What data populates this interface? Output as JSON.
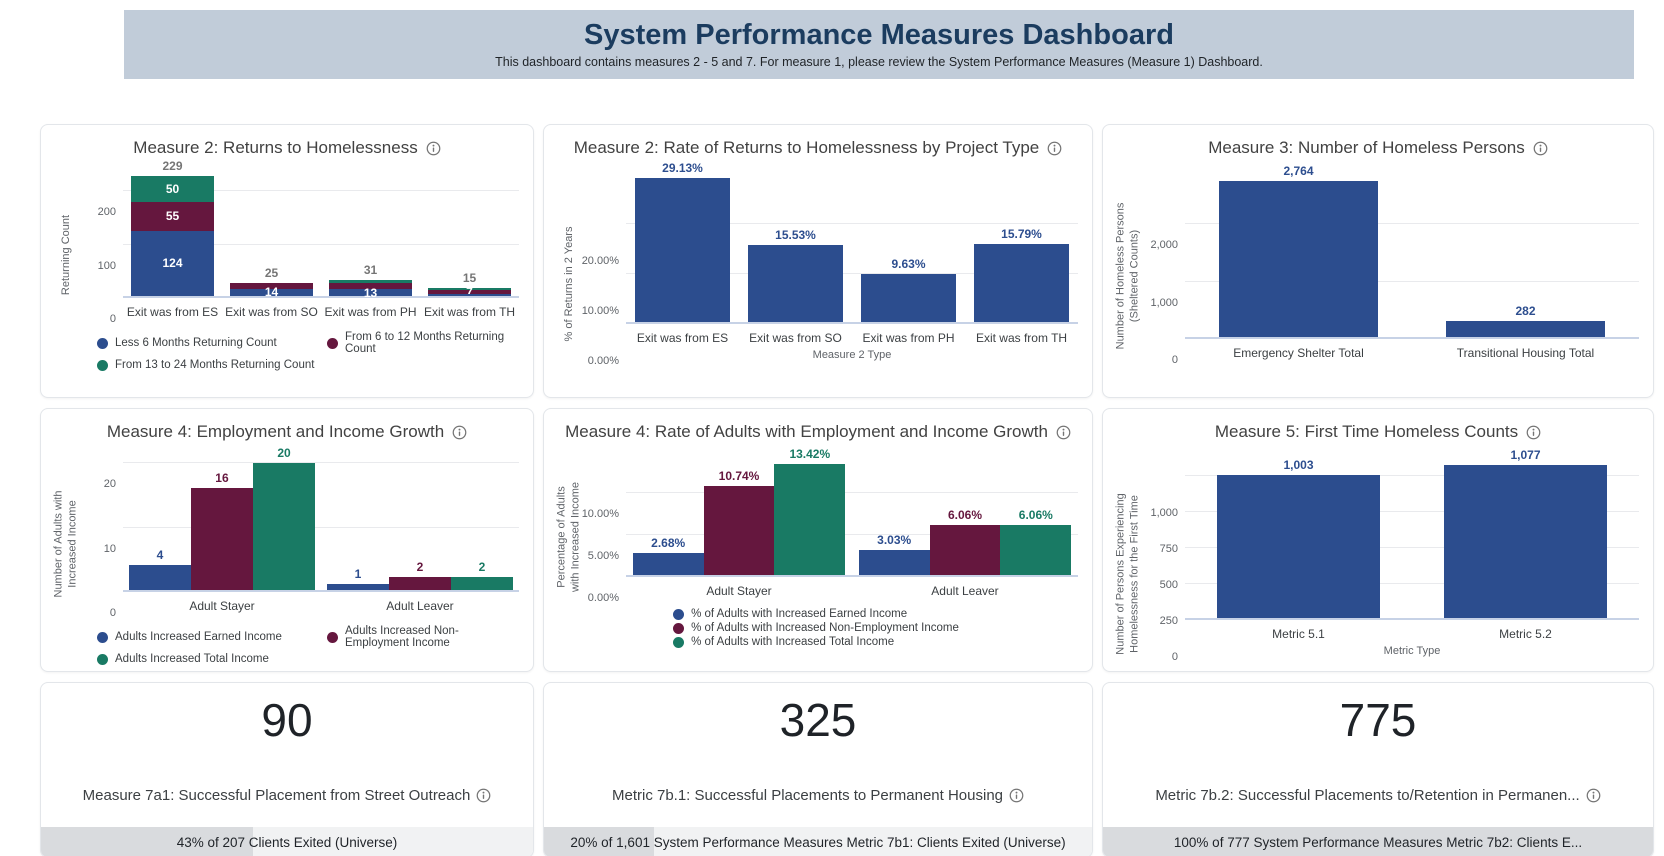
{
  "header": {
    "title": "System Performance Measures Dashboard",
    "subtitle": "This dashboard contains measures 2 - 5 and 7. For measure 1, please review the System Performance Measures (Measure 1) Dashboard."
  },
  "colors": {
    "blue": "#2C4D8E",
    "maroon": "#65173E",
    "teal": "#197A64",
    "value_label": "#2D4E8F",
    "total_label": "#757575",
    "header_bg": "#C1CCD9",
    "header_title": "#1B3C5F"
  },
  "chart_data": [
    {
      "id": "measure2-returns",
      "type": "bar-stacked",
      "title": "Measure 2: Returns to Homelessness",
      "ylabel": "Returning Count",
      "ylim": [
        0,
        240
      ],
      "yticks": [
        {
          "v": 0,
          "label": "0"
        },
        {
          "v": 100,
          "label": "100"
        },
        {
          "v": 200,
          "label": "200"
        }
      ],
      "categories": [
        "Exit was from ES",
        "Exit was from SO",
        "Exit was from PH",
        "Exit was from TH"
      ],
      "totals": [
        "229",
        "25",
        "31",
        "15"
      ],
      "series": [
        {
          "name": "Less 6 Months Returning Count",
          "color": "blue",
          "values": [
            124,
            14,
            13,
            4
          ],
          "bar_labels": [
            "124",
            "14",
            "13",
            ""
          ]
        },
        {
          "name": "From 6 to 12 Months Returning Count",
          "color": "maroon",
          "values": [
            55,
            11,
            12,
            7
          ],
          "bar_labels": [
            "55",
            "",
            "",
            "7"
          ]
        },
        {
          "name": "From 13 to 24 Months Returning Count",
          "color": "teal",
          "values": [
            50,
            0,
            6,
            4
          ],
          "bar_labels": [
            "50",
            "",
            "",
            ""
          ]
        }
      ],
      "legend": "left-2col"
    },
    {
      "id": "measure2-rate",
      "type": "bar",
      "title": "Measure 2: Rate of Returns to Homelessness by Project Type",
      "ylabel": "% of Returns in 2 Years",
      "xlabel": "Measure 2 Type",
      "ylim": [
        0,
        30.8
      ],
      "yticks": [
        {
          "v": 0,
          "label": "0.00%"
        },
        {
          "v": 10,
          "label": "10.00%"
        },
        {
          "v": 20,
          "label": "20.00%"
        }
      ],
      "categories": [
        "Exit was from ES",
        "Exit was from SO",
        "Exit was from PH",
        "Exit was from TH"
      ],
      "values": [
        29.13,
        15.53,
        9.63,
        15.79
      ],
      "bar_labels": [
        "29.13%",
        "15.53%",
        "9.63%",
        "15.79%"
      ]
    },
    {
      "id": "measure3",
      "type": "bar",
      "title": "Measure 3: Number of Homeless Persons",
      "ylabel": "Number of Homeless Persons (Sheltered Counts)",
      "ylim": [
        0,
        2950
      ],
      "yticks": [
        {
          "v": 0,
          "label": "0"
        },
        {
          "v": 1000,
          "label": "1,000"
        },
        {
          "v": 2000,
          "label": "2,000"
        }
      ],
      "categories": [
        "Emergency Shelter Total",
        "Transitional Housing Total"
      ],
      "values": [
        2764,
        282
      ],
      "bar_labels": [
        "2,764",
        "282"
      ]
    },
    {
      "id": "measure4-counts",
      "type": "bar-grouped",
      "title": "Measure 4: Employment and Income Growth",
      "ylabel": "Number of Adults with Increased Income",
      "ylim": [
        0,
        21.4
      ],
      "yticks": [
        {
          "v": 0,
          "label": "0"
        },
        {
          "v": 10,
          "label": "10"
        },
        {
          "v": 20,
          "label": "20"
        }
      ],
      "categories": [
        "Adult Stayer",
        "Adult Leaver"
      ],
      "series": [
        {
          "name": "Adults Increased Earned Income",
          "color": "blue",
          "values": [
            4,
            1
          ],
          "bar_labels": [
            "4",
            "1"
          ]
        },
        {
          "name": "Adults Increased Non-Employment Income",
          "color": "maroon",
          "values": [
            16,
            2
          ],
          "bar_labels": [
            "16",
            "2"
          ]
        },
        {
          "name": "Adults Increased Total Income",
          "color": "teal",
          "values": [
            20,
            2
          ],
          "bar_labels": [
            "20",
            "2"
          ]
        }
      ],
      "legend": "left-2col"
    },
    {
      "id": "measure4-rate",
      "type": "bar-grouped",
      "title": "Measure 4: Rate of Adults with Employment and Income Growth",
      "ylabel": "Percentage of Adults with Increased Income",
      "ylim": [
        0,
        14.6
      ],
      "yticks": [
        {
          "v": 0,
          "label": "0.00%"
        },
        {
          "v": 5,
          "label": "5.00%"
        },
        {
          "v": 10,
          "label": "10.00%"
        }
      ],
      "categories": [
        "Adult Stayer",
        "Adult Leaver"
      ],
      "series": [
        {
          "name": "% of Adults with Increased Earned Income",
          "color": "blue",
          "values": [
            2.68,
            3.03
          ],
          "bar_labels": [
            "2.68%",
            "3.03%"
          ]
        },
        {
          "name": "% of Adults with Increased Non-Employment Income",
          "color": "maroon",
          "values": [
            10.74,
            6.06
          ],
          "bar_labels": [
            "10.74%",
            "6.06%"
          ]
        },
        {
          "name": "% of Adults with Increased Total Income",
          "color": "teal",
          "values": [
            13.42,
            6.06
          ],
          "bar_labels": [
            "13.42%",
            "6.06%"
          ]
        }
      ],
      "legend": "center-1col"
    },
    {
      "id": "measure5",
      "type": "bar",
      "title": "Measure 5: First Time Homeless Counts",
      "ylabel": "Number of Persons Experiencing Homelessness for the First Time",
      "xlabel": "Metric Type",
      "ylim": [
        0,
        1152
      ],
      "yticks": [
        {
          "v": 0,
          "label": "0"
        },
        {
          "v": 250,
          "label": "250"
        },
        {
          "v": 500,
          "label": "500"
        },
        {
          "v": 750,
          "label": "750"
        },
        {
          "v": 1000,
          "label": "1,000"
        }
      ],
      "categories": [
        "Metric 5.1",
        "Metric 5.2"
      ],
      "values": [
        1003,
        1077
      ],
      "bar_labels": [
        "1,003",
        "1,077"
      ]
    },
    {
      "id": "measure7a1",
      "type": "scorecard",
      "value": "90",
      "title": "Measure 7a1: Successful Placement from Street Outreach",
      "progress_text": "43% of 207 Clients Exited (Universe)",
      "progress_pct": 43
    },
    {
      "id": "metric7b1",
      "type": "scorecard",
      "value": "325",
      "title": "Metric 7b.1: Successful Placements to Permanent Housing",
      "progress_text": "20% of 1,601 System Performance Measures Metric 7b1: Clients Exited (Universe)",
      "progress_pct": 20
    },
    {
      "id": "metric7b2",
      "type": "scorecard",
      "value": "775",
      "title": "Metric 7b.2: Successful Placements to/Retention in Permanen...",
      "progress_text": "100% of 777 System Performance Measures Metric 7b2: Clients E...",
      "progress_pct": 100
    }
  ]
}
